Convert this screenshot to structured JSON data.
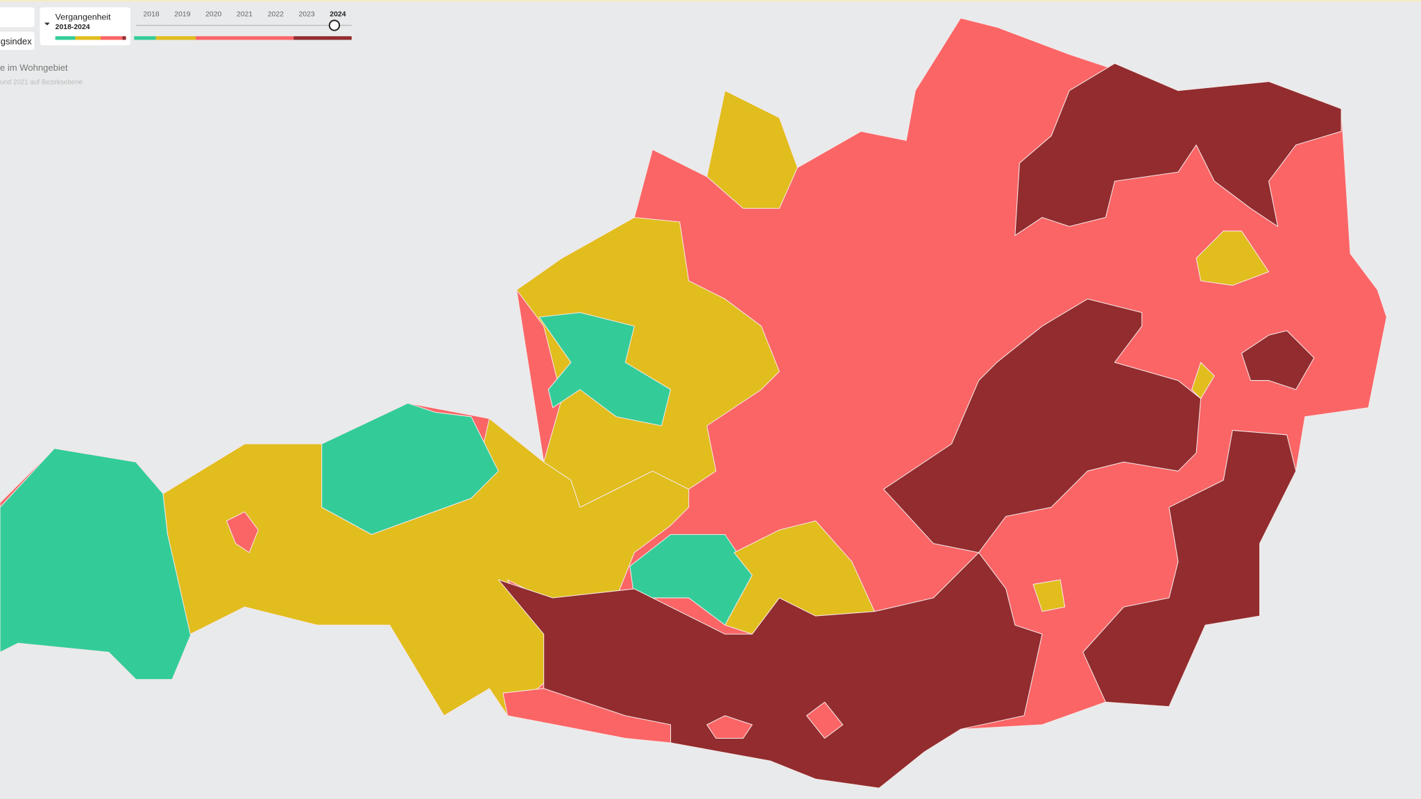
{
  "controls": {
    "index_button": "gsindex",
    "period": {
      "title": "Vergangenheit",
      "range": "2018-2024"
    },
    "timeline": {
      "years": [
        "2018",
        "2019",
        "2020",
        "2021",
        "2022",
        "2023",
        "2024"
      ]
    }
  },
  "legend": {
    "subtitle": "e im Wohngebiet",
    "note": "und 2021 auf Bezirksebene"
  }
}
